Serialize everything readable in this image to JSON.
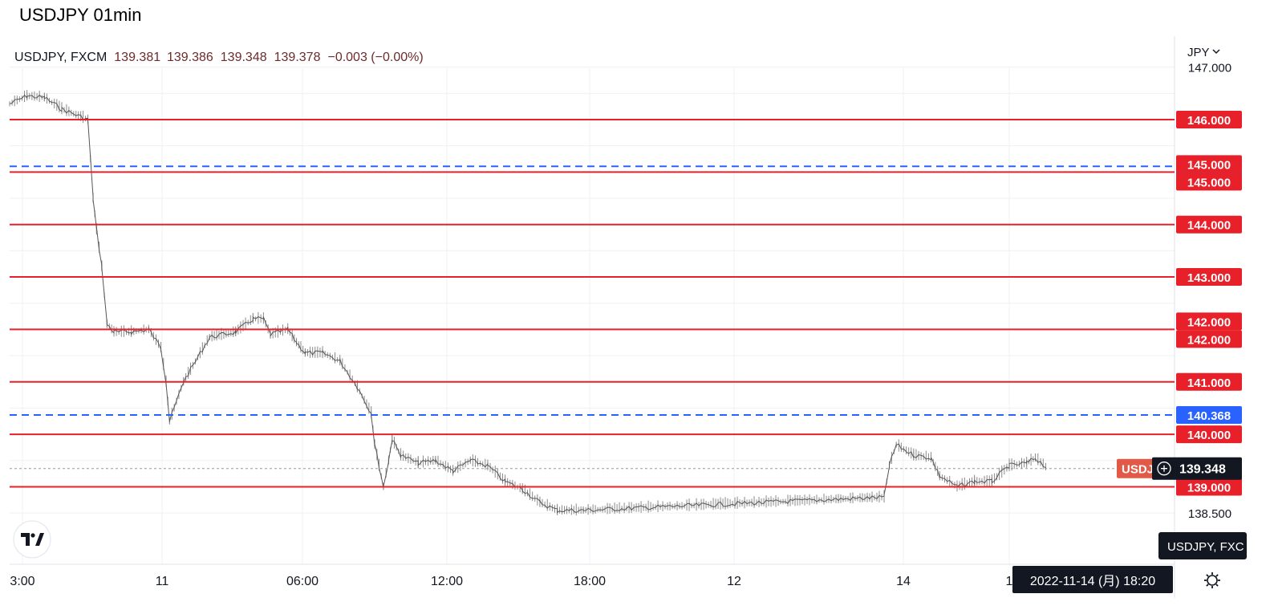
{
  "title": "USDJPY 01min",
  "legend": {
    "symbol": "USDJPY, FXCM",
    "open": "139.381",
    "high": "139.386",
    "low": "139.348",
    "close": "139.378",
    "change": "−0.003 (−0.00%)"
  },
  "currency_menu": "JPY",
  "colors": {
    "resistance": "#e8202a",
    "blue_line": "#2962ff",
    "candle": "#8a8a8a",
    "price_tag_bg": "#131722",
    "symbol_tag_bg": "#e05a47",
    "axis_text": "#131722",
    "grid": "#eef0f3"
  },
  "chart_data": {
    "type": "line",
    "symbol": "USDJPY, FXCM",
    "timeframe": "01min",
    "currency": "JPY",
    "ylim": [
      138.0,
      147.2
    ],
    "x_ticks": [
      {
        "label": "3:00",
        "t": 0
      },
      {
        "label": "11",
        "t": 3
      },
      {
        "label": "06:00",
        "t": 9
      },
      {
        "label": "12:00",
        "t": 15
      },
      {
        "label": "18:00",
        "t": 21
      },
      {
        "label": "12",
        "t": 27
      },
      {
        "label": "14",
        "t": 51
      },
      {
        "label": "1",
        "t": 54
      }
    ],
    "y_ticks": [
      {
        "label": "147.000",
        "y": 147.0
      },
      {
        "label": "138.500",
        "y": 138.5
      }
    ],
    "series": [
      {
        "x": [
          0,
          1,
          2,
          3,
          4.5,
          4.8,
          5,
          5.3,
          5.6,
          6,
          7,
          8,
          8.7,
          9,
          9.2,
          10,
          11.5,
          13,
          14,
          14.6,
          15,
          16,
          16.5,
          17,
          18,
          19,
          20,
          20.8,
          21,
          21.5,
          21.8,
          22,
          22.5,
          23.5,
          24.5,
          25.5,
          26.5,
          27.5,
          28.5,
          29.5,
          30.5,
          31.5,
          33,
          50.3,
          50.6,
          51,
          52,
          53,
          53.5,
          54.5,
          55.5,
          56.5,
          57.5,
          58.5,
          59,
          59.6
        ],
        "values": [
          146.3,
          146.45,
          146.42,
          146.2,
          146.0,
          144.5,
          143.9,
          143.2,
          142.1,
          141.95,
          141.95,
          142.0,
          141.65,
          141.0,
          140.25,
          141.0,
          141.85,
          141.95,
          142.2,
          142.2,
          141.9,
          142.0,
          141.75,
          141.55,
          141.55,
          141.4,
          140.9,
          140.4,
          139.8,
          139.0,
          139.5,
          139.9,
          139.6,
          139.45,
          139.5,
          139.3,
          139.5,
          139.4,
          139.1,
          138.95,
          138.7,
          138.55,
          138.55,
          138.8,
          139.4,
          139.8,
          139.6,
          139.55,
          139.2,
          139.0,
          139.1,
          139.1,
          139.4,
          139.45,
          139.55,
          139.378
        ]
      }
    ],
    "horizontal_lines": [
      {
        "value": 146.0,
        "label": "146.000",
        "color": "#e8202a",
        "style": "solid"
      },
      {
        "value": 145.108,
        "label": "145.108",
        "color": "#2962ff",
        "style": "dashed"
      },
      {
        "value": 145.0,
        "label": "145.000",
        "color": "#e8202a",
        "style": "solid"
      },
      {
        "value": 145.0,
        "label": "145.000",
        "color": "#e8202a",
        "style": "solid"
      },
      {
        "value": 144.0,
        "label": "144.000",
        "color": "#e8202a",
        "style": "solid"
      },
      {
        "value": 143.0,
        "label": "143.000",
        "color": "#e8202a",
        "style": "solid"
      },
      {
        "value": 142.0,
        "label": "142.000",
        "color": "#e8202a",
        "style": "solid"
      },
      {
        "value": 142.0,
        "label": "142.000",
        "color": "#e8202a",
        "style": "solid"
      },
      {
        "value": 141.0,
        "label": "141.000",
        "color": "#e8202a",
        "style": "solid"
      },
      {
        "value": 140.368,
        "label": "140.368",
        "color": "#2962ff",
        "style": "dashed"
      },
      {
        "value": 140.0,
        "label": "140.000",
        "color": "#e8202a",
        "style": "solid"
      },
      {
        "value": 139.0,
        "label": "139.000",
        "color": "#e8202a",
        "style": "solid"
      }
    ],
    "current_price": {
      "value": 139.348,
      "label": "139.348"
    },
    "symbol_tag": "USDJ",
    "crosshair_tooltip": "USDJPY, FXC",
    "time_tooltip": "2022-11-14 (月)   18:20",
    "grid": true
  }
}
